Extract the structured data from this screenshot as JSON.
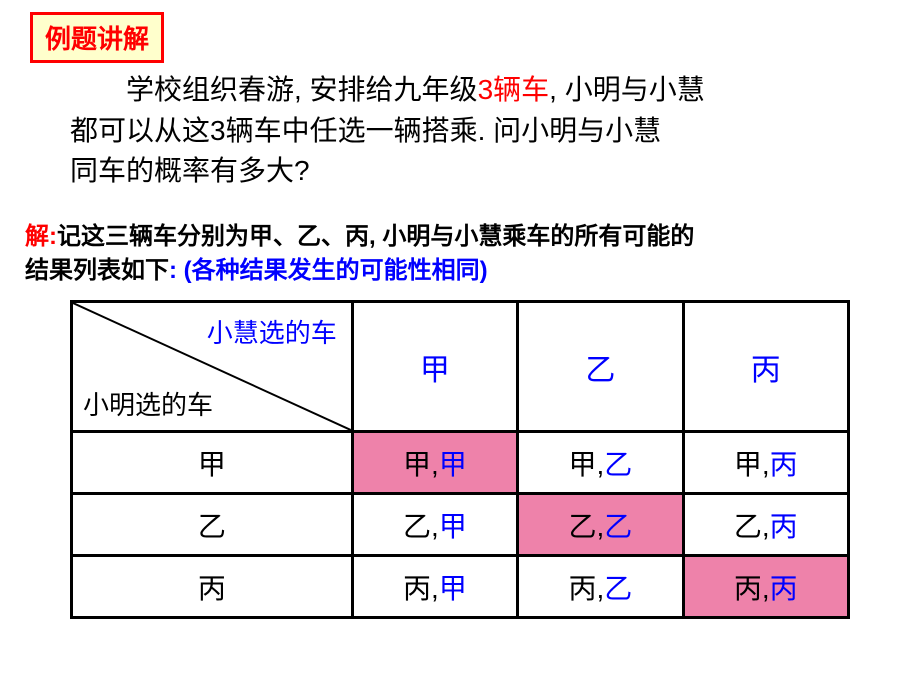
{
  "title": "例题讲解",
  "problem": {
    "line1_pre": "学校组织春游, 安排给九年级",
    "line1_red": "3辆车",
    "line1_post": ", 小明与小慧",
    "line2": "都可以从这3辆车中任选一辆搭乘. 问小明与小慧",
    "line3": "同车的概率有多大?"
  },
  "solution": {
    "label": "解:",
    "text1": "记这三辆车分别为甲、乙、丙, 小明与小慧乘车的所有可能的",
    "text2_pre": "结果列表如下",
    "text2_blue": ": (各种结果发生的可能性相同)"
  },
  "table": {
    "diag_top": "小慧选的车",
    "diag_bottom": "小明选的车",
    "col_headers": [
      "甲",
      "乙",
      "丙"
    ],
    "row_headers": [
      "甲",
      "乙",
      "丙"
    ],
    "cells": [
      [
        {
          "a": "甲",
          "b": "甲",
          "hl": true
        },
        {
          "a": "甲",
          "b": "乙",
          "hl": false
        },
        {
          "a": "甲",
          "b": "丙",
          "hl": false
        }
      ],
      [
        {
          "a": "乙",
          "b": "甲",
          "hl": false
        },
        {
          "a": "乙",
          "b": "乙",
          "hl": true
        },
        {
          "a": "乙",
          "b": "丙",
          "hl": false
        }
      ],
      [
        {
          "a": "丙",
          "b": "甲",
          "hl": false
        },
        {
          "a": "丙",
          "b": "乙",
          "hl": false
        },
        {
          "a": "丙",
          "b": "丙",
          "hl": true
        }
      ]
    ],
    "colors": {
      "border": "#000000",
      "highlight_bg": "#ee82aa",
      "header_text": "#0000ff",
      "cell_a_color": "#000000",
      "cell_b_color": "#0000ff"
    }
  },
  "styling": {
    "title_border": "#ff0000",
    "title_bg": "#ffffcc",
    "title_color": "#ff0000",
    "problem_color": "#000000",
    "red_color": "#ff0000",
    "solution_color": "#ff00ff",
    "blue_color": "#0000ff",
    "font_family": "Microsoft YaHei",
    "title_fontsize": 26,
    "problem_fontsize": 28,
    "solution_fontsize": 24,
    "table_fontsize": 28
  }
}
